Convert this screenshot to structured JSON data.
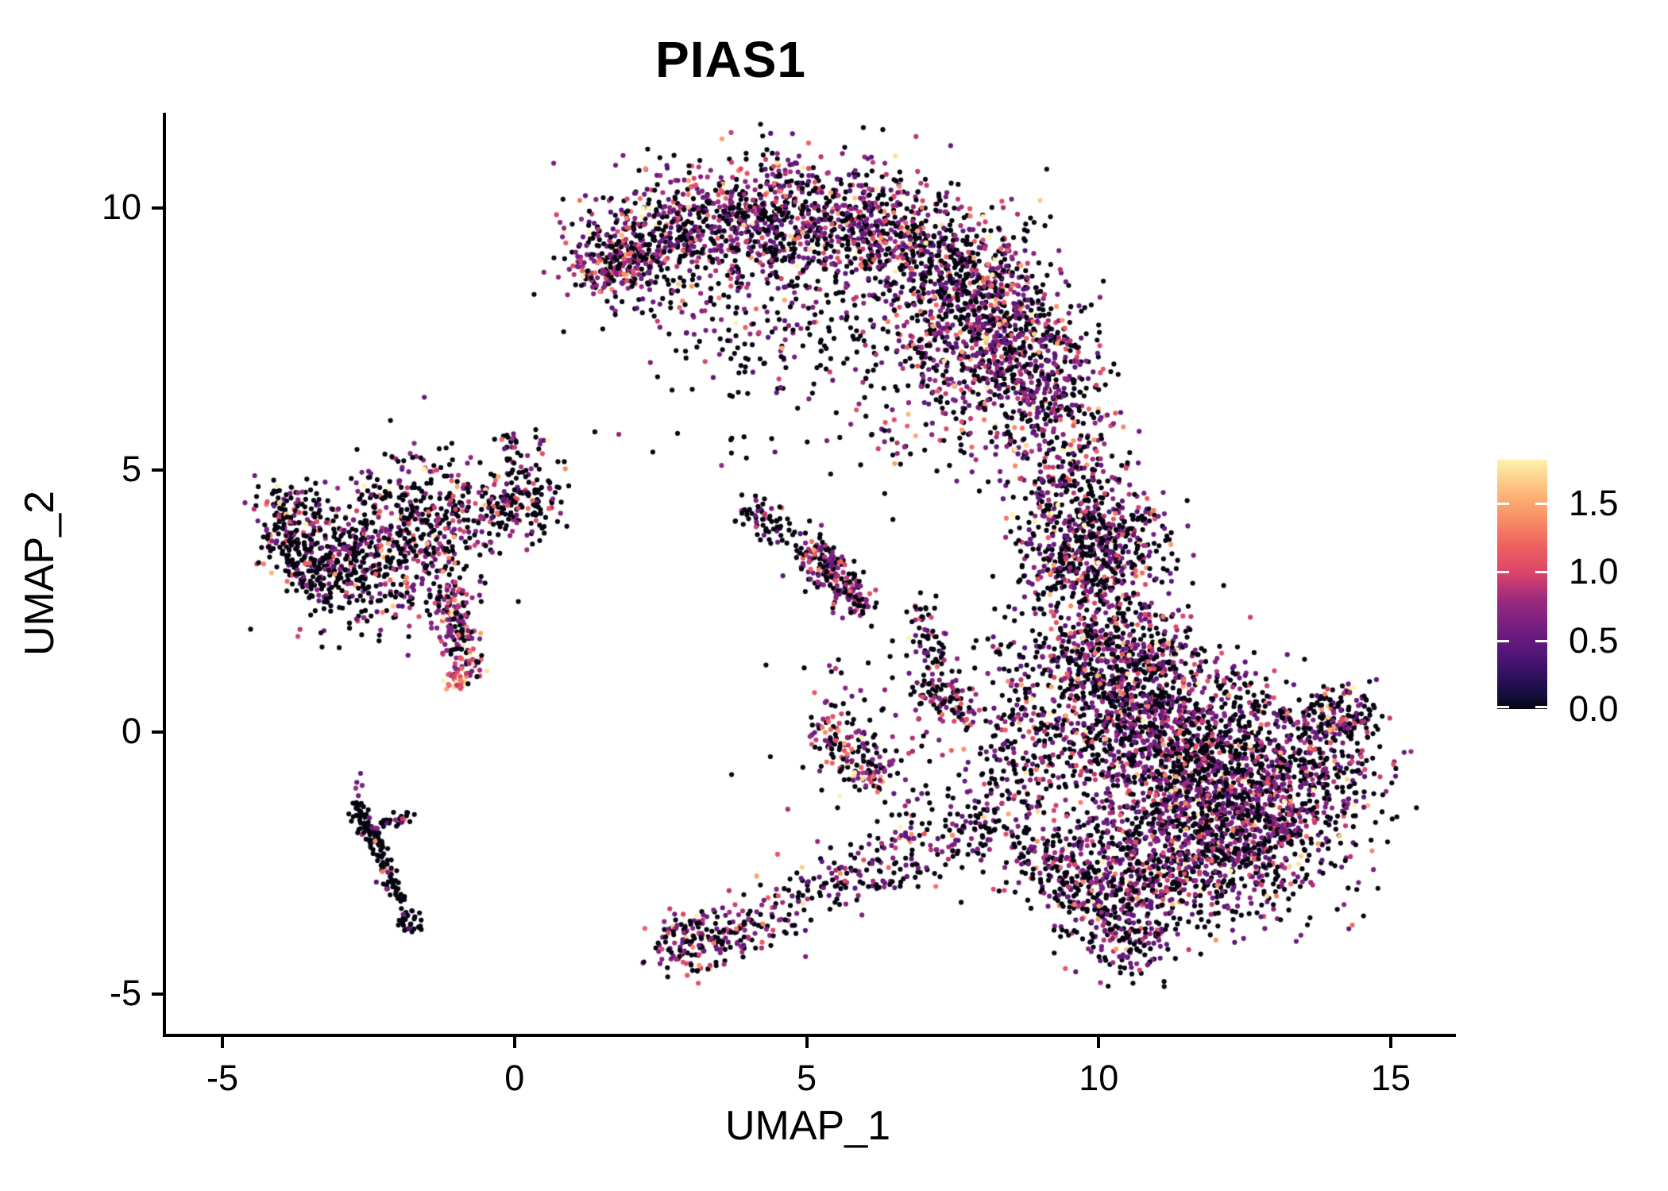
{
  "title": "PIAS1",
  "x_axis": {
    "label": "UMAP_1",
    "ticks": [
      {
        "value": -5,
        "text": "-5"
      },
      {
        "value": 0,
        "text": "0"
      },
      {
        "value": 5,
        "text": "5"
      },
      {
        "value": 10,
        "text": "10"
      },
      {
        "value": 15,
        "text": "15"
      }
    ]
  },
  "y_axis": {
    "label": "UMAP_2",
    "ticks": [
      {
        "value": 10,
        "text": "10"
      },
      {
        "value": 5,
        "text": "5"
      },
      {
        "value": 0,
        "text": "0"
      },
      {
        "value": -5,
        "text": "-5"
      }
    ]
  },
  "legend": {
    "max_value": 1.82,
    "ticks": [
      {
        "value": 1.5,
        "text": "1.5"
      },
      {
        "value": 1.0,
        "text": "1.0"
      },
      {
        "value": 0.5,
        "text": "0.5"
      },
      {
        "value": 0.0,
        "text": "0.0"
      }
    ]
  },
  "palette": {
    "name": "magma-like-expression-scale",
    "stops": [
      [
        0.0,
        "#060410"
      ],
      [
        0.1,
        "#150e3c"
      ],
      [
        0.25,
        "#321060"
      ],
      [
        0.4,
        "#531579"
      ],
      [
        0.6,
        "#761f81"
      ],
      [
        0.8,
        "#9c2a7e"
      ],
      [
        1.0,
        "#dd4569"
      ],
      [
        1.2,
        "#ee6360"
      ],
      [
        1.4,
        "#f99067"
      ],
      [
        1.55,
        "#fcb173"
      ],
      [
        1.7,
        "#fdd592"
      ],
      [
        1.82,
        "#fdf2ae"
      ]
    ]
  },
  "chart_data": {
    "type": "scatter",
    "title": "PIAS1",
    "xlabel": "UMAP_1",
    "ylabel": "UMAP_2",
    "x_range": [
      -6.02,
      16.06
    ],
    "y_range": [
      -5.76,
      11.82
    ],
    "grid": false,
    "legend_position": "right",
    "color_scale": {
      "min": 0.0,
      "max": 1.82,
      "tick_step": 0.5
    },
    "point_radius_px": 3.1,
    "seed": 42,
    "clusters": [
      {
        "name": "crescent-band",
        "type": "band",
        "count": 2100,
        "p0": 0.44,
        "vbase": 0.4,
        "vmean": 0.38,
        "width": 0.6,
        "path": [
          [
            1.3,
            8.75
          ],
          [
            2.3,
            9.35
          ],
          [
            3.6,
            9.85
          ],
          [
            5.2,
            10.0
          ],
          [
            6.6,
            9.5
          ],
          [
            7.8,
            8.7
          ],
          [
            8.6,
            7.6
          ],
          [
            9.1,
            6.4
          ],
          [
            9.35,
            5.6
          ]
        ]
      },
      {
        "name": "crescent-top-fill",
        "type": "blob",
        "count": 350,
        "p0": 0.48,
        "center": [
          5.0,
          9.55
        ],
        "sx": 1.5,
        "sy": 0.55
      },
      {
        "name": "crescent-right-fill",
        "type": "blob",
        "count": 550,
        "p0": 0.46,
        "center": [
          7.8,
          7.4
        ],
        "sx": 0.85,
        "sy": 1.0,
        "rot": -20
      },
      {
        "name": "crescent-under-sparse",
        "type": "blob",
        "count": 230,
        "p0": 0.62,
        "center": [
          4.4,
          7.9
        ],
        "sx": 1.1,
        "sy": 0.85
      },
      {
        "name": "crescent-left-tip",
        "type": "band",
        "count": 120,
        "p0": 0.35,
        "vbase": 0.55,
        "width": 0.18,
        "path": [
          [
            1.25,
            8.6
          ],
          [
            2.1,
            9.15
          ]
        ]
      },
      {
        "name": "upper-arm",
        "type": "band",
        "count": 300,
        "p0": 0.5,
        "width": 0.45,
        "path": [
          [
            9.3,
            5.4
          ],
          [
            9.55,
            4.3
          ],
          [
            9.75,
            3.2
          ]
        ]
      },
      {
        "name": "right-upper-blob",
        "type": "blob",
        "count": 430,
        "p0": 0.5,
        "center": [
          9.75,
          3.0
        ],
        "sx": 0.6,
        "sy": 0.8
      },
      {
        "name": "right-upper-east",
        "type": "blob",
        "count": 150,
        "p0": 0.55,
        "center": [
          10.4,
          3.6
        ],
        "sx": 0.45,
        "sy": 0.5
      },
      {
        "name": "right-core-a",
        "type": "blob",
        "count": 700,
        "p0": 0.5,
        "center": [
          10.5,
          0.4
        ],
        "sx": 0.8,
        "sy": 0.85
      },
      {
        "name": "right-core-b",
        "type": "blob",
        "count": 900,
        "p0": 0.5,
        "center": [
          11.6,
          -0.5
        ],
        "sx": 1.05,
        "sy": 0.9
      },
      {
        "name": "right-core-c",
        "type": "blob",
        "count": 800,
        "p0": 0.5,
        "center": [
          12.6,
          -1.6
        ],
        "sx": 0.95,
        "sy": 0.8,
        "rot": -30
      },
      {
        "name": "right-core-d",
        "type": "blob",
        "count": 600,
        "p0": 0.5,
        "center": [
          11.2,
          -2.5
        ],
        "sx": 0.9,
        "sy": 0.7
      },
      {
        "name": "right-tip",
        "type": "blob",
        "count": 300,
        "p0": 0.5,
        "center": [
          13.5,
          -0.4
        ],
        "sx": 0.65,
        "sy": 0.6
      },
      {
        "name": "right-tip-band",
        "type": "band",
        "count": 110,
        "p0": 0.52,
        "width": 0.3,
        "path": [
          [
            13.9,
            0.1
          ],
          [
            14.45,
            0.55
          ]
        ]
      },
      {
        "name": "right-top-edge",
        "type": "band",
        "count": 260,
        "p0": 0.5,
        "width": 0.4,
        "path": [
          [
            9.1,
            1.1
          ],
          [
            10.2,
            1.75
          ],
          [
            11.3,
            1.45
          ]
        ]
      },
      {
        "name": "right-left-edge",
        "type": "blob",
        "count": 200,
        "p0": 0.56,
        "center": [
          8.65,
          -0.4
        ],
        "sx": 0.5,
        "sy": 0.95
      },
      {
        "name": "right-bottom-tip",
        "type": "band",
        "count": 160,
        "p0": 0.52,
        "width": 0.4,
        "path": [
          [
            10.1,
            -3.3
          ],
          [
            10.7,
            -4.35
          ]
        ]
      },
      {
        "name": "right-bottom-fan",
        "type": "band",
        "count": 230,
        "p0": 0.52,
        "width": 0.5,
        "path": [
          [
            8.95,
            -2.1
          ],
          [
            10.2,
            -3.4
          ]
        ]
      },
      {
        "name": "left-far-blob",
        "type": "blob",
        "count": 120,
        "p0": 0.5,
        "vbase": 0.5,
        "center": [
          -3.9,
          4.15
        ],
        "sx": 0.35,
        "sy": 0.38
      },
      {
        "name": "left-far-strand",
        "type": "band",
        "count": 90,
        "p0": 0.7,
        "width": 0.2,
        "path": [
          [
            -4.05,
            3.85
          ],
          [
            -3.35,
            2.75
          ]
        ]
      },
      {
        "name": "left-mid-blob",
        "type": "blob",
        "count": 250,
        "p0": 0.68,
        "center": [
          -2.95,
          3.2
        ],
        "sx": 0.5,
        "sy": 0.5
      },
      {
        "name": "left-main-blob",
        "type": "blob",
        "count": 430,
        "p0": 0.5,
        "vbase": 0.5,
        "vmean": 0.42,
        "center": [
          -1.6,
          3.95
        ],
        "sx": 0.75,
        "sy": 0.68
      },
      {
        "name": "left-fill",
        "type": "blob",
        "count": 150,
        "p0": 0.7,
        "center": [
          -2.3,
          3.1
        ],
        "sx": 0.8,
        "sy": 0.75
      },
      {
        "name": "left-down-arm",
        "type": "band",
        "count": 160,
        "p0": 0.35,
        "vbase": 0.55,
        "width": 0.17,
        "path": [
          [
            -1.15,
            2.75
          ],
          [
            -0.8,
            1.1
          ]
        ]
      },
      {
        "name": "left-arm-hotspot",
        "type": "blob",
        "count": 28,
        "p0": 0.15,
        "vbase": 0.9,
        "vmean": 0.4,
        "center": [
          -1.0,
          1.0
        ],
        "sx": 0.12,
        "sy": 0.1
      },
      {
        "name": "left-east-arm",
        "type": "band",
        "count": 150,
        "p0": 0.62,
        "width": 0.3,
        "path": [
          [
            -0.5,
            4.3
          ],
          [
            0.75,
            4.45
          ]
        ]
      },
      {
        "name": "left-hook",
        "type": "band",
        "count": 35,
        "p0": 0.6,
        "width": 0.13,
        "path": [
          [
            0.1,
            4.85
          ],
          [
            -0.1,
            5.7
          ]
        ]
      },
      {
        "name": "left-hook-dots",
        "type": "blob",
        "count": 8,
        "p0": 0.5,
        "center": [
          0.45,
          5.55
        ],
        "sx": 0.1,
        "sy": 0.12
      },
      {
        "name": "mid-streak",
        "type": "band",
        "count": 200,
        "p0": 0.4,
        "vbase": 0.5,
        "width": 0.2,
        "path": [
          [
            5.0,
            3.55
          ],
          [
            5.95,
            2.35
          ]
        ]
      },
      {
        "name": "mid-v-arm",
        "type": "band",
        "count": 70,
        "p0": 0.72,
        "width": 0.2,
        "path": [
          [
            3.95,
            4.35
          ],
          [
            4.85,
            3.65
          ]
        ]
      },
      {
        "name": "tail-tip-blob",
        "type": "blob",
        "count": 130,
        "p0": 0.45,
        "vbase": 0.5,
        "center": [
          3.0,
          -3.95
        ],
        "sx": 0.35,
        "sy": 0.3
      },
      {
        "name": "tail-band",
        "type": "band",
        "count": 380,
        "p0": 0.5,
        "width": 0.35,
        "path": [
          [
            3.3,
            -4.05
          ],
          [
            4.6,
            -3.4
          ],
          [
            6.2,
            -2.5
          ],
          [
            7.7,
            -1.9
          ],
          [
            8.7,
            -1.55
          ]
        ]
      },
      {
        "name": "wisp-hot",
        "type": "band",
        "count": 150,
        "p0": 0.42,
        "vbase": 0.5,
        "vmean": 0.45,
        "width": 0.26,
        "path": [
          [
            5.25,
            0.15
          ],
          [
            6.3,
            -0.9
          ]
        ]
      },
      {
        "name": "wisp-rose",
        "type": "band",
        "count": 85,
        "p0": 0.45,
        "vbase": 0.55,
        "width": 0.2,
        "path": [
          [
            7.05,
            1.05
          ],
          [
            7.7,
            0.2
          ]
        ]
      },
      {
        "name": "wisp-upper",
        "type": "band",
        "count": 55,
        "p0": 0.7,
        "width": 0.15,
        "path": [
          [
            6.85,
            2.45
          ],
          [
            7.25,
            1.25
          ]
        ]
      },
      {
        "name": "mid-noise",
        "type": "blob",
        "count": 140,
        "p0": 0.6,
        "center": [
          6.9,
          0.1
        ],
        "sx": 1.15,
        "sy": 1.15
      },
      {
        "name": "upper-noise",
        "type": "blob",
        "count": 25,
        "p0": 0.75,
        "center": [
          5.3,
          5.7
        ],
        "sx": 1.2,
        "sy": 0.5
      },
      {
        "name": "bl-streak",
        "type": "band",
        "count": 115,
        "p0": 0.93,
        "width": 0.08,
        "path": [
          [
            -2.75,
            -1.35
          ],
          [
            -2.35,
            -2.2
          ],
          [
            -1.95,
            -3.25
          ]
        ]
      },
      {
        "name": "bl-streak-tip",
        "type": "blob",
        "count": 32,
        "p0": 0.85,
        "center": [
          -1.82,
          -3.6
        ],
        "sx": 0.14,
        "sy": 0.16
      },
      {
        "name": "bl-streak-arm",
        "type": "band",
        "count": 26,
        "p0": 0.55,
        "width": 0.09,
        "path": [
          [
            -2.45,
            -1.8
          ],
          [
            -1.7,
            -1.58
          ]
        ]
      },
      {
        "name": "bl-streak-dots",
        "type": "blob",
        "count": 5,
        "p0": 0.3,
        "center": [
          -2.65,
          -1.05
        ],
        "sx": 0.06,
        "sy": 0.12
      }
    ]
  }
}
